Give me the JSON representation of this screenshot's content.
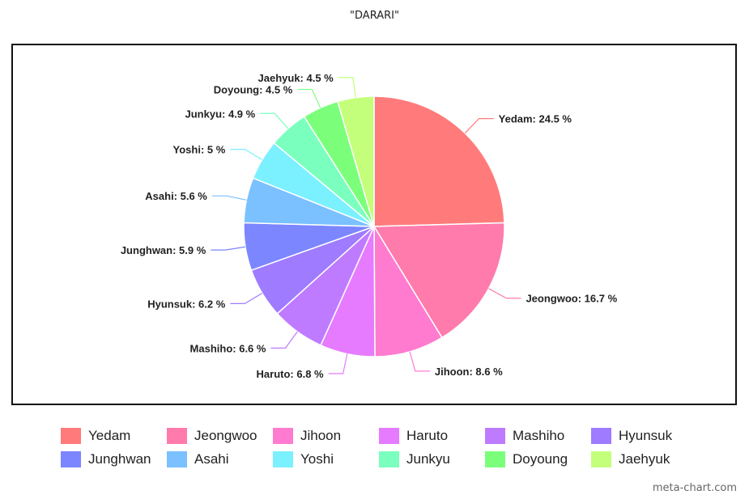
{
  "chart_data": {
    "type": "pie",
    "title": "\"DARARI\"",
    "categories": [
      "Yedam",
      "Jeongwoo",
      "Jihoon",
      "Haruto",
      "Mashiho",
      "Hyunsuk",
      "Junghwan",
      "Asahi",
      "Yoshi",
      "Junkyu",
      "Doyoung",
      "Jaehyuk"
    ],
    "values": [
      24.5,
      16.7,
      8.6,
      6.8,
      6.6,
      6.2,
      5.9,
      5.6,
      5,
      4.9,
      4.5,
      4.5
    ],
    "unit": "%",
    "colors": [
      "#ff7b7b",
      "#ff7bac",
      "#ff7bd0",
      "#e67bff",
      "#bf7bff",
      "#9f7bff",
      "#7b86ff",
      "#7bc0ff",
      "#7bf0ff",
      "#7bffbe",
      "#7bff7b",
      "#c4ff7b"
    ],
    "legend": "bottom"
  },
  "credit": "meta-chart.com"
}
